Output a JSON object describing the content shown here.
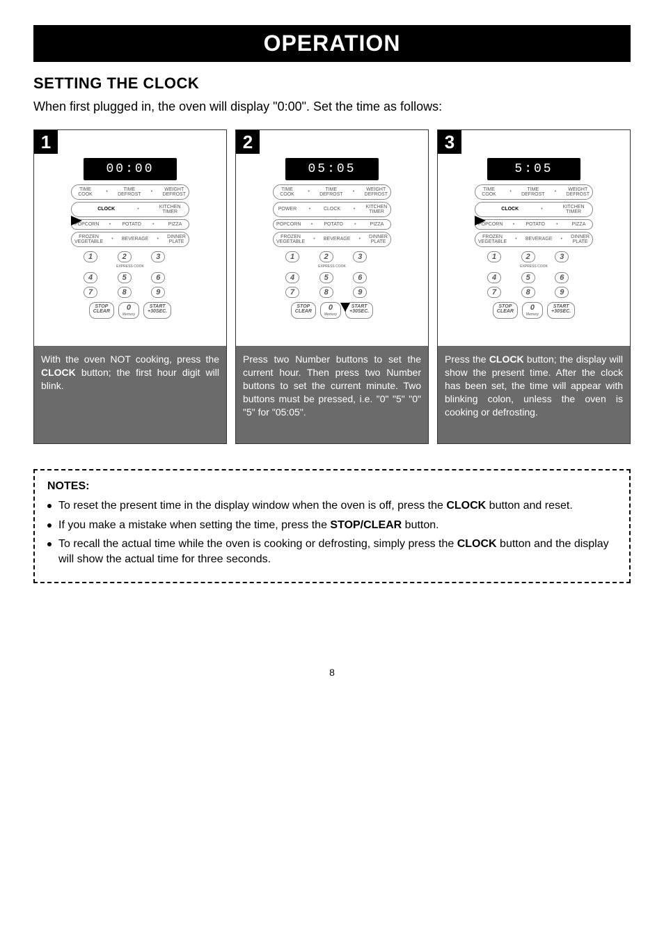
{
  "banner": "OPERATION",
  "subtitle": "SETTING THE CLOCK",
  "intro_text": "When first plugged in, the oven will display \"0:00\". Set the time as follows:",
  "panel_common": {
    "row1": [
      "TIME<br>COOK",
      "TIME<br>DEFROST",
      "WEIGHT<br>DEFROST"
    ],
    "row2_power": [
      "POWER",
      "CLOCK",
      "KITCHEN<br>TIMER"
    ],
    "row2_clock": [
      "CLOCK",
      "KITCHEN<br>TIMER"
    ],
    "row3": [
      "POPCORN",
      "POTATO",
      "PIZZA"
    ],
    "row4": [
      "FROZEN<br>VEGETABLE",
      "BEVERAGE",
      "DINNER<br>PLATE"
    ],
    "numbers": [
      "1",
      "2",
      "3",
      "4",
      "5",
      "6",
      "7",
      "8",
      "9"
    ],
    "express_cook": "EXPRESS COOK",
    "bottom": {
      "stop": "STOP<br>CLEAR",
      "zero": "0",
      "memory": "Memory",
      "start": "START<br>+30SEC."
    }
  },
  "steps": [
    {
      "num": "1",
      "lcd": "00:00",
      "row2_mode": "clock_highlight",
      "arrow": "clock",
      "desc_html": "With the oven NOT cooking, press the <b>CLOCK</b> button; the first hour digit will blink."
    },
    {
      "num": "2",
      "lcd": "05:05",
      "row2_mode": "power",
      "arrow": "numpad59",
      "desc_html": "Press two Number buttons to set the current hour. Then press two Number buttons to set the current minute. Two buttons must be pressed, i.e. \"0\" \"5\" \"0\" \"5\" for \"05:05\"."
    },
    {
      "num": "3",
      "lcd": " 5:05",
      "row2_mode": "clock_highlight",
      "arrow": "clock",
      "desc_html": "Press the <b>CLOCK</b> button; the display will show the present time. After the clock has been set, the time will appear with blinking colon, unless the oven is cooking or defrosting."
    }
  ],
  "notes": {
    "heading": "NOTES:",
    "items": [
      "To reset the present time in the display window when the  oven is off, press the  <b>CLOCK</b> button and reset.",
      "If you make a mistake when setting the time, press the <b>STOP/CLEAR</b>  button.",
      "To recall the actual time while the oven is cooking or defrosting, simply press the  <b>CLOCK</b> button and the display will show the actual time for three seconds."
    ]
  },
  "page_number": "8"
}
